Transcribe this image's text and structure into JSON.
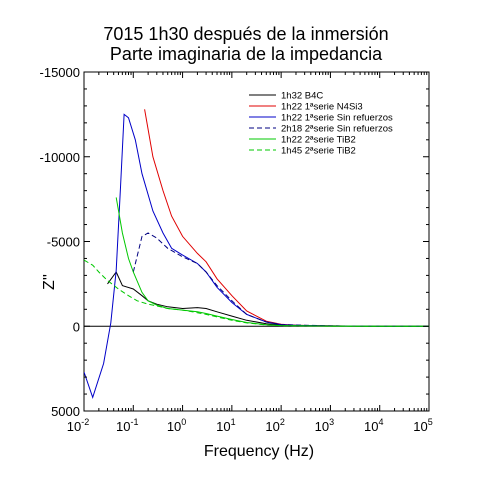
{
  "chart_data": {
    "type": "line",
    "title": "7015 1h30 después de la inmersión",
    "subtitle": "Parte imaginaria de la impedancia",
    "xlabel": "Frequency (Hz)",
    "ylabel": "Z''",
    "x_scale": "log",
    "xlim": [
      0.01,
      100000
    ],
    "ylim": [
      5000,
      -15000
    ],
    "y_inverted": true,
    "x_ticks": [
      {
        "base": "10",
        "exp": "-2"
      },
      {
        "base": "10",
        "exp": "-1"
      },
      {
        "base": "10",
        "exp": "0"
      },
      {
        "base": "10",
        "exp": "1"
      },
      {
        "base": "10",
        "exp": "2"
      },
      {
        "base": "10",
        "exp": "3"
      },
      {
        "base": "10",
        "exp": "4"
      },
      {
        "base": "10",
        "exp": "5"
      }
    ],
    "y_ticks": [
      "-15000",
      "-10000",
      "-5000",
      "0",
      "5000"
    ],
    "grid": false,
    "zero_line": true,
    "legend_position": "top-right",
    "series": [
      {
        "name": "1h32 B4C",
        "color": "#000000",
        "dash": false,
        "points": [
          [
            0.03,
            -2500
          ],
          [
            0.045,
            -3200
          ],
          [
            0.06,
            -2400
          ],
          [
            0.1,
            -2200
          ],
          [
            0.15,
            -1800
          ],
          [
            0.2,
            -1500
          ],
          [
            0.3,
            -1300
          ],
          [
            0.5,
            -1150
          ],
          [
            1,
            -1050
          ],
          [
            2,
            -1100
          ],
          [
            3,
            -1050
          ],
          [
            5,
            -850
          ],
          [
            10,
            -600
          ],
          [
            20,
            -350
          ],
          [
            50,
            -150
          ],
          [
            100,
            -80
          ],
          [
            200,
            -50
          ],
          [
            1000,
            -20
          ],
          [
            10000,
            -5
          ],
          [
            100000,
            0
          ]
        ]
      },
      {
        "name": "1h22 1ªserie N4Si3",
        "color": "#e00000",
        "dash": false,
        "points": [
          [
            0.17,
            -12800
          ],
          [
            0.25,
            -10000
          ],
          [
            0.4,
            -8000
          ],
          [
            0.6,
            -6500
          ],
          [
            1,
            -5300
          ],
          [
            2,
            -4300
          ],
          [
            3,
            -3800
          ],
          [
            5,
            -2800
          ],
          [
            10,
            -1800
          ],
          [
            20,
            -900
          ],
          [
            50,
            -300
          ],
          [
            100,
            -120
          ],
          [
            200,
            -60
          ],
          [
            1000,
            -20
          ],
          [
            10000,
            -5
          ],
          [
            100000,
            0
          ]
        ]
      },
      {
        "name": "1h22 1ªserie Sin refuerzos",
        "color": "#0000c8",
        "dash": false,
        "points": [
          [
            0.01,
            2700
          ],
          [
            0.015,
            4200
          ],
          [
            0.025,
            2200
          ],
          [
            0.035,
            -200
          ],
          [
            0.045,
            -3300
          ],
          [
            0.055,
            -8200
          ],
          [
            0.065,
            -12500
          ],
          [
            0.08,
            -12300
          ],
          [
            0.11,
            -11000
          ],
          [
            0.15,
            -9000
          ],
          [
            0.25,
            -6800
          ],
          [
            0.4,
            -5500
          ],
          [
            0.6,
            -4600
          ],
          [
            1,
            -4200
          ],
          [
            2,
            -3700
          ],
          [
            3,
            -3200
          ],
          [
            5,
            -2300
          ],
          [
            10,
            -1400
          ],
          [
            20,
            -700
          ],
          [
            50,
            -250
          ],
          [
            100,
            -100
          ],
          [
            200,
            -50
          ],
          [
            1000,
            -20
          ],
          [
            10000,
            -5
          ],
          [
            100000,
            0
          ]
        ]
      },
      {
        "name": "2h18 2ªserie Sin refuerzos",
        "color": "#000080",
        "dash": true,
        "points": [
          [
            0.1,
            -3200
          ],
          [
            0.15,
            -5300
          ],
          [
            0.2,
            -5500
          ],
          [
            0.3,
            -5200
          ],
          [
            0.5,
            -4600
          ],
          [
            1,
            -4100
          ],
          [
            2,
            -3700
          ],
          [
            3,
            -3200
          ],
          [
            5,
            -2400
          ],
          [
            10,
            -1500
          ],
          [
            20,
            -700
          ],
          [
            50,
            -250
          ],
          [
            100,
            -100
          ],
          [
            1000,
            -20
          ],
          [
            10000,
            -5
          ],
          [
            100000,
            0
          ]
        ]
      },
      {
        "name": "1h22 2ªserie TiB2",
        "color": "#00c800",
        "dash": false,
        "points": [
          [
            0.045,
            -7600
          ],
          [
            0.06,
            -5500
          ],
          [
            0.08,
            -4000
          ],
          [
            0.1,
            -3200
          ],
          [
            0.15,
            -2000
          ],
          [
            0.2,
            -1500
          ],
          [
            0.3,
            -1250
          ],
          [
            0.5,
            -1050
          ],
          [
            1,
            -950
          ],
          [
            2,
            -850
          ],
          [
            3,
            -750
          ],
          [
            5,
            -600
          ],
          [
            10,
            -400
          ],
          [
            20,
            -220
          ],
          [
            50,
            -90
          ],
          [
            100,
            -40
          ],
          [
            1000,
            -10
          ],
          [
            10000,
            0
          ],
          [
            100000,
            0
          ]
        ]
      },
      {
        "name": "1h45 2ªserie TiB2",
        "color": "#00c800",
        "dash": true,
        "points": [
          [
            0.01,
            -3900
          ],
          [
            0.015,
            -3600
          ],
          [
            0.02,
            -3200
          ],
          [
            0.03,
            -2700
          ],
          [
            0.05,
            -2200
          ],
          [
            0.08,
            -1800
          ],
          [
            0.12,
            -1500
          ],
          [
            0.2,
            -1300
          ],
          [
            0.3,
            -1200
          ],
          [
            0.5,
            -1050
          ],
          [
            1,
            -950
          ],
          [
            2,
            -800
          ],
          [
            3,
            -700
          ],
          [
            5,
            -550
          ],
          [
            10,
            -350
          ],
          [
            20,
            -200
          ],
          [
            50,
            -80
          ],
          [
            100,
            -30
          ],
          [
            1000,
            -10
          ],
          [
            10000,
            0
          ],
          [
            100000,
            0
          ]
        ]
      }
    ]
  }
}
